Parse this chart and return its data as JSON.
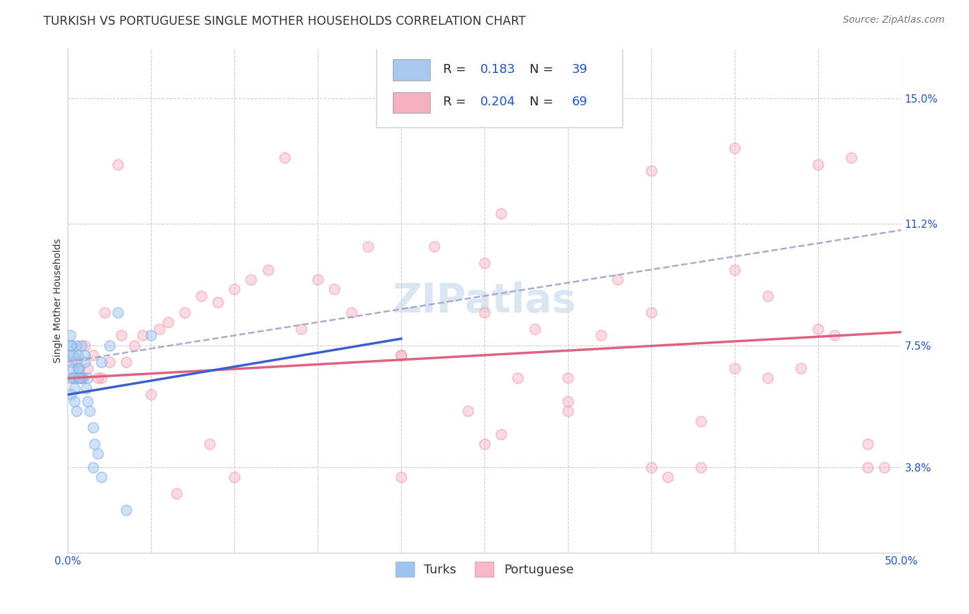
{
  "title": "TURKISH VS PORTUGUESE SINGLE MOTHER HOUSEHOLDS CORRELATION CHART",
  "source": "Source: ZipAtlas.com",
  "ylabel": "Single Mother Households",
  "ytick_labels": [
    "3.8%",
    "7.5%",
    "11.2%",
    "15.0%"
  ],
  "ytick_values": [
    3.8,
    7.5,
    11.2,
    15.0
  ],
  "xlim": [
    0.0,
    50.0
  ],
  "ylim": [
    1.2,
    16.5
  ],
  "watermark": "ZIPatlas",
  "legend_r_entries": [
    {
      "r": "0.183",
      "n": "39",
      "color": "#a8c8f0"
    },
    {
      "r": "0.204",
      "n": "69",
      "color": "#f4b0c0"
    }
  ],
  "turks_x": [
    0.1,
    0.15,
    0.2,
    0.25,
    0.3,
    0.35,
    0.4,
    0.5,
    0.6,
    0.7,
    0.8,
    0.9,
    1.0,
    1.1,
    1.2,
    1.3,
    1.5,
    1.6,
    1.8,
    2.0,
    2.5,
    3.0,
    0.15,
    0.2,
    0.3,
    0.5,
    0.6,
    0.8,
    1.0,
    1.2,
    1.5,
    2.0,
    3.5,
    5.0,
    0.2,
    0.4,
    0.6,
    0.3,
    0.7
  ],
  "turks_y": [
    6.5,
    7.2,
    7.5,
    7.0,
    6.8,
    6.5,
    6.2,
    7.5,
    7.2,
    6.8,
    7.5,
    6.5,
    7.0,
    6.2,
    5.8,
    5.5,
    5.0,
    4.5,
    4.2,
    7.0,
    7.5,
    8.5,
    7.8,
    7.5,
    7.2,
    5.5,
    6.8,
    6.5,
    7.2,
    6.5,
    3.8,
    3.5,
    2.5,
    7.8,
    6.0,
    5.8,
    6.5,
    6.5,
    6.5
  ],
  "portuguese_x": [
    0.5,
    0.8,
    1.0,
    1.5,
    2.0,
    2.5,
    3.0,
    3.5,
    4.0,
    5.0,
    5.5,
    6.0,
    7.0,
    8.0,
    9.0,
    10.0,
    11.0,
    13.0,
    14.0,
    15.0,
    16.0,
    17.0,
    18.0,
    20.0,
    22.0,
    24.0,
    25.0,
    27.0,
    28.0,
    30.0,
    32.0,
    33.0,
    35.0,
    36.0,
    38.0,
    40.0,
    42.0,
    44.0,
    46.0,
    47.0,
    48.0,
    49.0,
    1.2,
    1.8,
    2.2,
    3.2,
    4.5,
    6.5,
    8.5,
    12.0,
    20.0,
    25.0,
    30.0,
    35.0,
    40.0,
    45.0,
    26.0,
    38.0,
    42.0,
    10.0,
    25.0,
    28.0,
    35.0,
    40.0,
    45.0,
    48.0,
    30.0,
    20.0,
    26.0
  ],
  "portuguese_y": [
    7.0,
    6.5,
    7.5,
    7.2,
    6.5,
    7.0,
    13.0,
    7.0,
    7.5,
    6.0,
    8.0,
    8.2,
    8.5,
    9.0,
    8.8,
    9.2,
    9.5,
    13.2,
    8.0,
    9.5,
    9.2,
    8.5,
    10.5,
    7.2,
    10.5,
    5.5,
    8.5,
    6.5,
    8.0,
    5.8,
    7.8,
    9.5,
    3.8,
    3.5,
    3.8,
    6.8,
    6.5,
    6.8,
    7.8,
    13.2,
    3.8,
    3.8,
    6.8,
    6.5,
    8.5,
    7.8,
    7.8,
    3.0,
    4.5,
    9.8,
    7.2,
    10.0,
    5.5,
    8.5,
    9.8,
    8.0,
    4.8,
    5.2,
    9.0,
    3.5,
    4.5,
    14.5,
    12.8,
    13.5,
    13.0,
    4.5,
    6.5,
    3.5,
    11.5
  ],
  "turks_color": "#9ec4f0",
  "turks_edge_color": "#7aabeb",
  "portuguese_color": "#f8b8c8",
  "portuguese_edge_color": "#f090aa",
  "turks_line_color": "#3b5fce",
  "portuguese_line_color": "#e06080",
  "dashed_line_color": "#aaaacc",
  "grid_color": "#cccccc",
  "background_color": "#ffffff",
  "title_fontsize": 12.5,
  "source_fontsize": 10,
  "axis_label_fontsize": 10,
  "tick_fontsize": 11,
  "legend_fontsize": 13,
  "watermark_fontsize": 42,
  "watermark_color": "#ccdcee",
  "marker_size": 120,
  "marker_alpha": 0.5,
  "turks_regression": {
    "x_start": 0.0,
    "x_end": 20.0,
    "slope": 0.085,
    "intercept": 6.0
  },
  "portuguese_regression": {
    "x_start": 0.0,
    "x_end": 50.0,
    "slope": 0.028,
    "intercept": 6.5
  },
  "dashed_regression": {
    "x_start": 0.0,
    "x_end": 50.0,
    "slope": 0.08,
    "intercept": 7.0
  }
}
